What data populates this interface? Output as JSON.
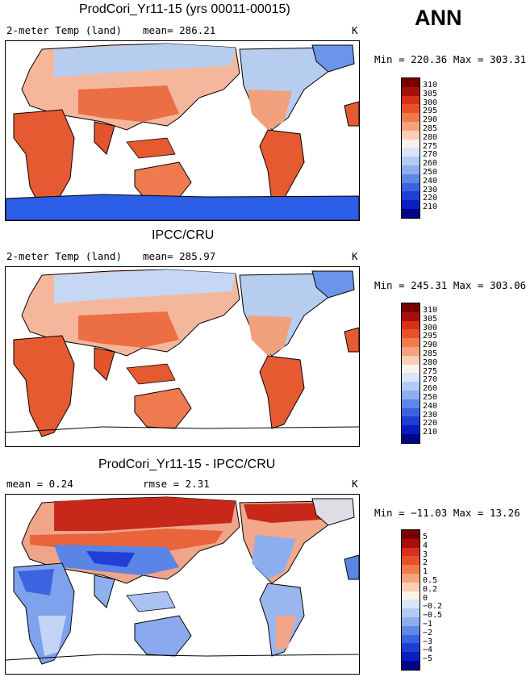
{
  "season": "ANN",
  "units": "K",
  "panels": [
    {
      "title": "ProdCori_Yr11-15 (yrs 00011-00015)",
      "left_label": "2-meter Temp (land)",
      "stat": "mean= 286.21",
      "range": "Min = 220.36 Max = 303.31",
      "levels": [
        "310",
        "305",
        "300",
        "295",
        "290",
        "285",
        "280",
        "275",
        "270",
        "260",
        "250",
        "240",
        "230",
        "220",
        "210"
      ]
    },
    {
      "title": "IPCC/CRU",
      "left_label": "2-meter Temp (land)",
      "stat": "mean= 285.97",
      "range": "Min = 245.31 Max = 303.06",
      "levels": [
        "310",
        "305",
        "300",
        "295",
        "290",
        "285",
        "280",
        "275",
        "270",
        "260",
        "250",
        "240",
        "230",
        "220",
        "210"
      ]
    },
    {
      "title": "ProdCori_Yr11-15 - IPCC/CRU",
      "left_label": "mean =    0.24",
      "stat": "rmse =    2.31",
      "range": "Min = −11.03 Max =  13.26",
      "levels": [
        "5",
        "4",
        "3",
        "2",
        "1",
        "0.5",
        "0.2",
        "0",
        "−0.2",
        "−0.5",
        "−1",
        "−2",
        "−3",
        "−4",
        "−5"
      ]
    }
  ],
  "colors": {
    "scale": [
      "#7a0000",
      "#a80f0a",
      "#d8301a",
      "#ea5028",
      "#f27a4a",
      "#f5a37c",
      "#f8cfb5",
      "#fcf2ea",
      "#d7e6fa",
      "#b3cbf3",
      "#8daeee",
      "#5f88e6",
      "#3b63e0",
      "#1d3fd3",
      "#0a1ec0",
      "#00058a"
    ],
    "land_warm": "#ec6e45",
    "land_mid": "#f3b79a",
    "land_cold": "#b7cdf0",
    "antarctic": "#2c5de6"
  }
}
